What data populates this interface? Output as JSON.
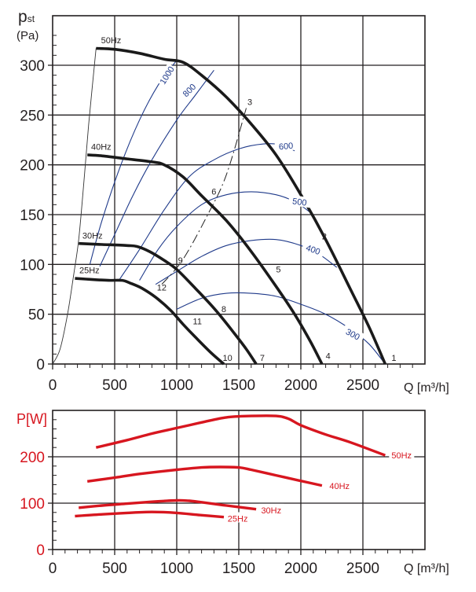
{
  "chart_data": [
    {
      "type": "line",
      "title": "",
      "ylabel": "p",
      "ylabel_sub": "st",
      "yunit": "(Pa)",
      "xlabel": "Q [m³/h]",
      "xlim": [
        0,
        3000
      ],
      "ylim": [
        0,
        335
      ],
      "grid": true,
      "x_ticks": [
        "0",
        "500",
        "1000",
        "1500",
        "2000",
        "2500"
      ],
      "x_tick_values": [
        0,
        500,
        1000,
        1500,
        2000,
        2500
      ],
      "y_ticks": [
        "0",
        "50",
        "100",
        "150",
        "200",
        "250",
        "300"
      ],
      "y_tick_values": [
        0,
        50,
        100,
        150,
        200,
        250,
        300
      ],
      "fan_curves": [
        {
          "name": "50Hz",
          "x": [
            350,
            500,
            700,
            900,
            1050,
            1200,
            1400,
            1600,
            1800,
            2000,
            2200,
            2400,
            2550,
            2680
          ],
          "y": [
            317,
            316,
            312,
            306,
            303,
            290,
            268,
            241,
            210,
            170,
            125,
            75,
            37,
            0
          ]
        },
        {
          "name": "40Hz",
          "x": [
            280,
            400,
            600,
            800,
            900,
            1050,
            1200,
            1400,
            1600,
            1800,
            1950,
            2080,
            2170
          ],
          "y": [
            210,
            209,
            206,
            203,
            200,
            188,
            169,
            144,
            113,
            78,
            50,
            22,
            0
          ]
        },
        {
          "name": "30Hz",
          "x": [
            210,
            400,
            600,
            680,
            780,
            900,
            1000,
            1150,
            1300,
            1450,
            1560,
            1640
          ],
          "y": [
            121,
            120,
            119,
            118,
            113,
            104,
            95,
            76,
            56,
            33,
            15,
            0
          ]
        },
        {
          "name": "25Hz",
          "x": [
            180,
            300,
            450,
            560,
            630,
            720,
            830,
            950,
            1050,
            1150,
            1270,
            1380
          ],
          "y": [
            86,
            85,
            84,
            84,
            81,
            76,
            67,
            54,
            40,
            27,
            12,
            0
          ]
        }
      ],
      "frequency_labels": [
        {
          "text": "50Hz",
          "x": 390,
          "y": 322
        },
        {
          "text": "40Hz",
          "x": 310,
          "y": 215
        },
        {
          "text": "30Hz",
          "x": 240,
          "y": 126
        },
        {
          "text": "25Hz",
          "x": 215,
          "y": 91
        }
      ],
      "limit_curve": {
        "x": [
          0,
          60,
          120,
          170,
          210,
          250,
          290,
          350
        ],
        "y": [
          0,
          15,
          50,
          90,
          125,
          180,
          240,
          317
        ]
      },
      "system_line": {
        "x": [
          880,
          1050,
          1250,
          1400,
          1560
        ],
        "y": [
          80,
          105,
          150,
          190,
          257
        ]
      },
      "speed_curves": [
        {
          "name": "1000",
          "x": [
            300,
            400,
            550,
            700,
            850,
            1000
          ],
          "y": [
            100,
            145,
            200,
            245,
            280,
            305
          ]
        },
        {
          "name": "800",
          "x": [
            380,
            500,
            650,
            800,
            1000,
            1150,
            1300
          ],
          "y": [
            98,
            130,
            170,
            205,
            245,
            270,
            295
          ]
        },
        {
          "name": "600",
          "x": [
            540,
            700,
            900,
            1100,
            1300,
            1500,
            1700,
            1850,
            1950
          ],
          "y": [
            85,
            115,
            155,
            188,
            205,
            216,
            221,
            220,
            214
          ]
        },
        {
          "name": "500",
          "x": [
            700,
            850,
            1000,
            1200,
            1400,
            1600,
            1800,
            1950,
            2080
          ],
          "y": [
            84,
            115,
            138,
            160,
            170,
            173,
            170,
            163,
            152
          ]
        },
        {
          "name": "400",
          "x": [
            830,
            1000,
            1200,
            1400,
            1600,
            1800,
            2000,
            2150,
            2290
          ],
          "y": [
            80,
            93,
            108,
            119,
            124,
            125,
            119,
            110,
            97
          ]
        },
        {
          "name": "300",
          "x": [
            1000,
            1200,
            1400,
            1600,
            1800,
            2000,
            2200,
            2400,
            2550,
            2680
          ],
          "y": [
            55,
            66,
            71,
            71,
            68,
            60,
            50,
            35,
            20,
            0
          ]
        }
      ],
      "speed_labels": [
        {
          "text": "1000",
          "x": 920,
          "y": 290,
          "angle": -58
        },
        {
          "text": "800",
          "x": 1100,
          "y": 275,
          "angle": -45
        },
        {
          "text": "600",
          "x": 1880,
          "y": 219,
          "angle": -5
        },
        {
          "text": "500",
          "x": 1990,
          "y": 163,
          "angle": 8
        },
        {
          "text": "400",
          "x": 2100,
          "y": 115,
          "angle": 20
        },
        {
          "text": "300",
          "x": 2420,
          "y": 30,
          "angle": 28
        }
      ],
      "point_labels": [
        {
          "text": "1",
          "x": 2730,
          "y": 3
        },
        {
          "text": "2",
          "x": 2170,
          "y": 125
        },
        {
          "text": "3",
          "x": 1570,
          "y": 260
        },
        {
          "text": "4",
          "x": 2200,
          "y": 5
        },
        {
          "text": "5",
          "x": 1800,
          "y": 92
        },
        {
          "text": "6",
          "x": 1280,
          "y": 170
        },
        {
          "text": "7",
          "x": 1670,
          "y": 3
        },
        {
          "text": "8",
          "x": 1360,
          "y": 52
        },
        {
          "text": "9",
          "x": 1010,
          "y": 101
        },
        {
          "text": "10",
          "x": 1370,
          "y": 3
        },
        {
          "text": "11",
          "x": 1130,
          "y": 40
        },
        {
          "text": "12",
          "x": 840,
          "y": 74
        }
      ]
    },
    {
      "type": "line",
      "title": "",
      "ylabel": "P[W]",
      "xlabel": "Q [m³/h]",
      "xlim": [
        0,
        3000
      ],
      "ylim": [
        0,
        300
      ],
      "grid": true,
      "x_ticks": [
        "0",
        "500",
        "1000",
        "1500",
        "2000",
        "2500"
      ],
      "x_tick_values": [
        0,
        500,
        1000,
        1500,
        2000,
        2500
      ],
      "y_ticks": [
        "0",
        "100",
        "200"
      ],
      "y_tick_values": [
        0,
        100,
        200
      ],
      "series": [
        {
          "name": "50Hz",
          "x": [
            350,
            600,
            800,
            1000,
            1200,
            1400,
            1600,
            1800,
            1900,
            2000,
            2200,
            2400,
            2680
          ],
          "y": [
            220,
            236,
            250,
            262,
            274,
            285,
            288,
            288,
            282,
            268,
            248,
            231,
            203
          ]
        },
        {
          "name": "40Hz",
          "x": [
            280,
            500,
            700,
            1000,
            1200,
            1350,
            1500,
            1600,
            1800,
            2000,
            2170
          ],
          "y": [
            147,
            155,
            163,
            172,
            177,
            178,
            177,
            172,
            160,
            148,
            138
          ]
        },
        {
          "name": "30Hz",
          "x": [
            210,
            400,
            600,
            800,
            1000,
            1100,
            1200,
            1400,
            1640
          ],
          "y": [
            90,
            95,
            99,
            103,
            106,
            105,
            102,
            95,
            87
          ]
        },
        {
          "name": "25Hz",
          "x": [
            180,
            400,
            600,
            800,
            1000,
            1200,
            1380
          ],
          "y": [
            72,
            76,
            79,
            81,
            79,
            74,
            70
          ]
        }
      ],
      "series_labels": [
        {
          "text": "50Hz",
          "x": 2730,
          "y": 203
        },
        {
          "text": "40Hz",
          "x": 2230,
          "y": 137
        },
        {
          "text": "30Hz",
          "x": 1680,
          "y": 85
        },
        {
          "text": "25Hz",
          "x": 1410,
          "y": 67
        }
      ]
    }
  ],
  "colors": {
    "axis": "#231f20",
    "fan_curve": "#1a1a1a",
    "speed_curve": "#1f3a8a",
    "power": "#d7161f"
  }
}
